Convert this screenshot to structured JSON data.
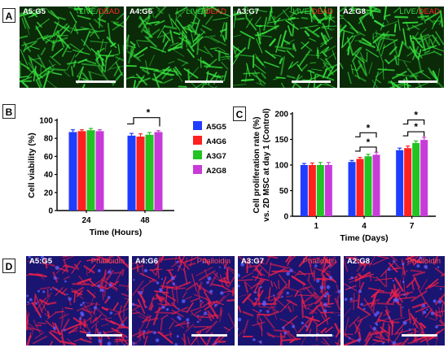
{
  "panels": {
    "a": {
      "tag": "A",
      "items": [
        {
          "label": "A5:G5",
          "live": "LIVE",
          "slash": "/",
          "dead": "DEAD"
        },
        {
          "label": "A4:G6",
          "live": "LIVE",
          "slash": "/",
          "dead": "DEAD"
        },
        {
          "label": "A3:G7",
          "live": "LIVE",
          "slash": "/",
          "dead": "DEAD"
        },
        {
          "label": "A2:G8",
          "live": "LIVE",
          "slash": "/",
          "dead": "DEAD"
        }
      ]
    },
    "b": {
      "tag": "B"
    },
    "c": {
      "tag": "C"
    },
    "d": {
      "tag": "D",
      "items": [
        {
          "label": "A5:G5",
          "stain": "Phalloidin"
        },
        {
          "label": "A4:G6",
          "stain": "Phalloidin"
        },
        {
          "label": "A3:G7",
          "stain": "Phalloidin"
        },
        {
          "label": "A2:G8",
          "stain": "Phalloidin"
        }
      ]
    }
  },
  "colors": {
    "live_bg": "#0a2a08",
    "live_cell": "#35e03c",
    "phal_bg": "#1a1570",
    "phal_cell": "#e8204a",
    "nucleus": "#5a5cff"
  },
  "chart_data": [
    {
      "type": "bar",
      "panel": "B",
      "categories": [
        "24",
        "48"
      ],
      "series": [
        {
          "name": "A5G5",
          "color": "#1f3dff",
          "values": [
            87,
            83
          ],
          "errors": [
            2.5,
            2.5
          ]
        },
        {
          "name": "A4G6",
          "color": "#ff2020",
          "values": [
            88,
            82
          ],
          "errors": [
            1.5,
            3
          ]
        },
        {
          "name": "A3G7",
          "color": "#22c322",
          "values": [
            89,
            84
          ],
          "errors": [
            2,
            2.5
          ]
        },
        {
          "name": "A2G8",
          "color": "#c83bd8",
          "values": [
            88,
            87
          ],
          "errors": [
            1.5,
            1.5
          ]
        }
      ],
      "xlabel": "Time (Hours)",
      "ylabel": "Cell viability (%)",
      "ylim": [
        0,
        100
      ],
      "yticks": [
        0,
        20,
        40,
        60,
        80,
        100
      ],
      "grid": false,
      "legend": "right",
      "annotations": [
        "*"
      ]
    },
    {
      "type": "bar",
      "panel": "C",
      "categories": [
        "1",
        "4",
        "7"
      ],
      "series": [
        {
          "name": "A5G5",
          "color": "#1f3dff",
          "values": [
            100,
            106,
            129
          ],
          "errors": [
            3,
            3,
            4
          ]
        },
        {
          "name": "A4G6",
          "color": "#ff2020",
          "values": [
            100,
            112,
            133
          ],
          "errors": [
            4,
            3,
            4
          ]
        },
        {
          "name": "A3G7",
          "color": "#22c322",
          "values": [
            100,
            117,
            143
          ],
          "errors": [
            5,
            4,
            4
          ]
        },
        {
          "name": "A2G8",
          "color": "#c83bd8",
          "values": [
            100,
            120,
            149
          ],
          "errors": [
            5,
            5,
            5
          ]
        }
      ],
      "xlabel": "Time (Days)",
      "ylabel": "Cell proliferation rate (%)",
      "ylabel2": "vs. 2D MSC at day 1 (Control)",
      "ylim": [
        0,
        200
      ],
      "yticks": [
        0,
        50,
        100,
        150,
        200
      ],
      "grid": false,
      "annotations": [
        "*",
        "*",
        "*",
        "*"
      ]
    }
  ]
}
